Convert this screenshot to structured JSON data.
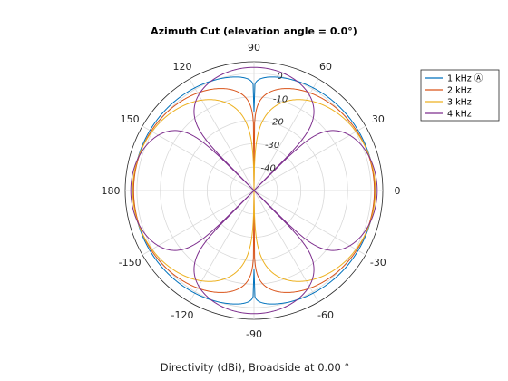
{
  "chart_data": {
    "type": "polar-line",
    "title": "Azimuth Cut (elevation angle = 0.0°)",
    "xlabel": "Directivity (dBi), Broadside at 0.00 °",
    "angle_ticks": [
      {
        "deg": 0,
        "label": "0"
      },
      {
        "deg": 30,
        "label": "30"
      },
      {
        "deg": 60,
        "label": "60"
      },
      {
        "deg": 90,
        "label": "90"
      },
      {
        "deg": 120,
        "label": "120"
      },
      {
        "deg": 150,
        "label": "150"
      },
      {
        "deg": 180,
        "label": "180"
      },
      {
        "deg": 210,
        "label": "-150"
      },
      {
        "deg": 240,
        "label": "-120"
      },
      {
        "deg": 270,
        "label": "-90"
      },
      {
        "deg": 300,
        "label": "-60"
      },
      {
        "deg": 330,
        "label": "-30"
      }
    ],
    "radial_ticks": [
      {
        "value": 0,
        "label": "0"
      },
      {
        "value": -10,
        "label": "-10"
      },
      {
        "value": -20,
        "label": "-20"
      },
      {
        "value": -30,
        "label": "-30"
      },
      {
        "value": -40,
        "label": "-40"
      }
    ],
    "radial_range_db": [
      -50,
      5
    ],
    "radial_tick_label_angle_deg": 80,
    "angle_grid_step_deg": 30,
    "grid": true,
    "legend_position": "top-right",
    "series": [
      {
        "name": "1 kHz Ⓐ",
        "color": "#0072BD",
        "model": "cos_pow",
        "peak_db": 1.5,
        "exponent": 0.15
      },
      {
        "name": "2 kHz",
        "color": "#D95319",
        "model": "cos_pow",
        "peak_db": 1.4,
        "exponent": 0.55
      },
      {
        "name": "3 kHz",
        "color": "#EDB120",
        "model": "cos_pow",
        "peak_db": 1.8,
        "exponent": 1.2
      },
      {
        "name": "4 kHz",
        "color": "#7E2F8E",
        "model": "cos2_pow",
        "peak_db": 2.6,
        "exponent": 0.9
      }
    ]
  }
}
